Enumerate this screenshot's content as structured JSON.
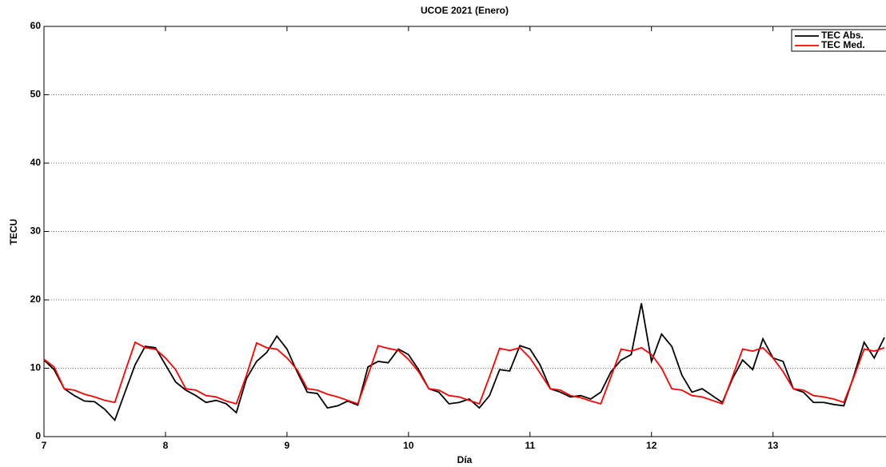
{
  "chart_data": {
    "type": "line",
    "title": "UCOE 2021 (Enero)",
    "x_label": "Día",
    "y_label": "TECU",
    "x": [
      7,
      7.083,
      7.167,
      7.25,
      7.333,
      7.417,
      7.5,
      7.583,
      7.667,
      7.75,
      7.833,
      7.917,
      8,
      8.083,
      8.167,
      8.25,
      8.333,
      8.417,
      8.5,
      8.583,
      8.667,
      8.75,
      8.833,
      8.917,
      9,
      9.083,
      9.167,
      9.25,
      9.333,
      9.417,
      9.5,
      9.583,
      9.667,
      9.75,
      9.833,
      9.917,
      10,
      10.083,
      10.167,
      10.25,
      10.333,
      10.417,
      10.5,
      10.583,
      10.667,
      10.75,
      10.833,
      10.917,
      11,
      11.083,
      11.167,
      11.25,
      11.333,
      11.417,
      11.5,
      11.583,
      11.667,
      11.75,
      11.833,
      11.917,
      12,
      12.083,
      12.167,
      12.25,
      12.333,
      12.417,
      12.5,
      12.583,
      12.667,
      12.75,
      12.833,
      12.917,
      13,
      13.083,
      13.167,
      13.25,
      13.333,
      13.417,
      13.5,
      13.583,
      13.667,
      13.75,
      13.833,
      13.917
    ],
    "series": [
      {
        "name": "TEC Abs.",
        "color": "#000000",
        "values": [
          11.2,
          9.8,
          7.0,
          6.0,
          5.2,
          5.1,
          4.0,
          2.4,
          6.5,
          10.5,
          13.2,
          13.0,
          10.5,
          8.0,
          6.8,
          6.0,
          5.0,
          5.3,
          4.8,
          3.5,
          8.5,
          11.0,
          12.3,
          14.7,
          12.8,
          9.5,
          6.5,
          6.3,
          4.2,
          4.5,
          5.2,
          4.6,
          10.2,
          11.0,
          10.8,
          12.8,
          12.0,
          9.8,
          7.0,
          6.5,
          4.8,
          5.0,
          5.5,
          4.2,
          6.0,
          9.8,
          9.6,
          13.3,
          12.8,
          10.5,
          7.0,
          6.5,
          5.8,
          6.0,
          5.5,
          6.5,
          9.5,
          11.2,
          12.0,
          19.5,
          11.0,
          15.0,
          13.2,
          9.0,
          6.5,
          7.0,
          6.0,
          5.0,
          8.5,
          11.2,
          9.8,
          14.3,
          11.5,
          11.0,
          7.0,
          6.5,
          5.0,
          5.0,
          4.7,
          4.5,
          9.0,
          13.8,
          11.5,
          14.5
        ]
      },
      {
        "name": "TEC Med.",
        "color": "#ff0000",
        "values": [
          11.3,
          10.2,
          7.0,
          6.8,
          6.2,
          5.8,
          5.3,
          5.0,
          9.5,
          13.8,
          13.0,
          12.8,
          11.5,
          9.8,
          7.0,
          6.8,
          6.0,
          5.8,
          5.2,
          4.8,
          9.0,
          13.7,
          13.0,
          12.8,
          11.5,
          9.8,
          7.0,
          6.8,
          6.2,
          5.8,
          5.3,
          4.8,
          9.0,
          13.3,
          12.9,
          12.6,
          11.3,
          9.5,
          7.0,
          6.8,
          6.0,
          5.8,
          5.3,
          4.8,
          8.8,
          12.9,
          12.6,
          13.0,
          11.5,
          9.3,
          7.0,
          6.8,
          6.0,
          5.7,
          5.2,
          4.8,
          8.8,
          12.8,
          12.5,
          13.0,
          12.0,
          10.0,
          7.0,
          6.8,
          6.0,
          5.8,
          5.3,
          4.8,
          8.8,
          12.8,
          12.5,
          13.0,
          11.5,
          9.5,
          7.0,
          6.8,
          6.0,
          5.8,
          5.5,
          5.0,
          8.8,
          12.8,
          12.5,
          13.0
        ]
      }
    ],
    "xlim": [
      7,
      13.93
    ],
    "ylim": [
      0,
      60
    ],
    "xticks": [
      7,
      8,
      9,
      10,
      11,
      12,
      13
    ],
    "yticks": [
      0,
      10,
      20,
      30,
      40,
      50,
      60
    ],
    "grid": true,
    "legend": "upper right"
  }
}
